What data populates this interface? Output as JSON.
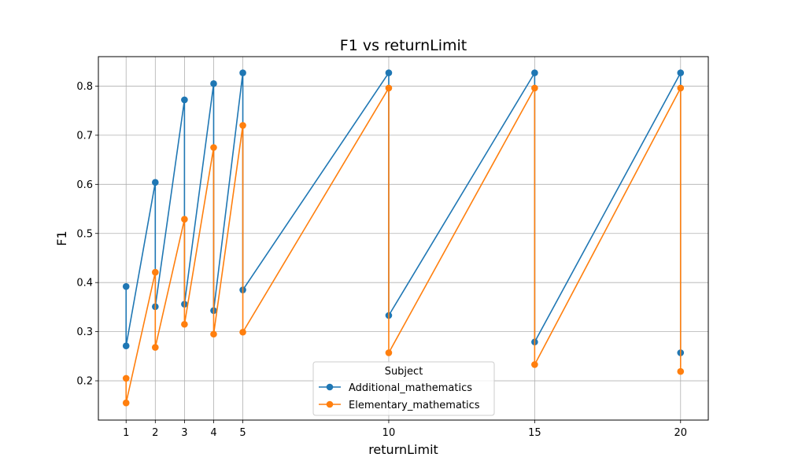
{
  "chart_data": {
    "type": "line",
    "title": "F1 vs returnLimit",
    "xlabel": "returnLimit",
    "ylabel": "F1",
    "xlim": [
      0.05,
      20.95
    ],
    "ylim": [
      0.12,
      0.86
    ],
    "xticks": [
      1,
      2,
      3,
      4,
      5,
      10,
      15,
      20
    ],
    "yticks": [
      0.2,
      0.3,
      0.4,
      0.5,
      0.6,
      0.7,
      0.8
    ],
    "grid": true,
    "legend": {
      "title": "Subject",
      "placement": "bottom-center"
    },
    "series": [
      {
        "name": "Additional_mathematics",
        "color": "#1f77b4",
        "marker": "circle",
        "x": [
          1,
          1,
          2,
          2,
          3,
          3,
          4,
          4,
          5,
          5,
          10,
          10,
          15,
          15,
          20,
          20
        ],
        "y": [
          0.392,
          0.271,
          0.604,
          0.351,
          0.772,
          0.356,
          0.805,
          0.343,
          0.827,
          0.385,
          0.827,
          0.333,
          0.827,
          0.279,
          0.827,
          0.257
        ]
      },
      {
        "name": "Elementary_mathematics",
        "color": "#ff7f0e",
        "marker": "circle",
        "x": [
          1,
          1,
          2,
          2,
          3,
          3,
          4,
          4,
          5,
          5,
          10,
          10,
          15,
          15,
          20,
          20
        ],
        "y": [
          0.205,
          0.155,
          0.421,
          0.268,
          0.529,
          0.315,
          0.675,
          0.295,
          0.72,
          0.299,
          0.796,
          0.257,
          0.796,
          0.233,
          0.796,
          0.219
        ]
      }
    ]
  }
}
